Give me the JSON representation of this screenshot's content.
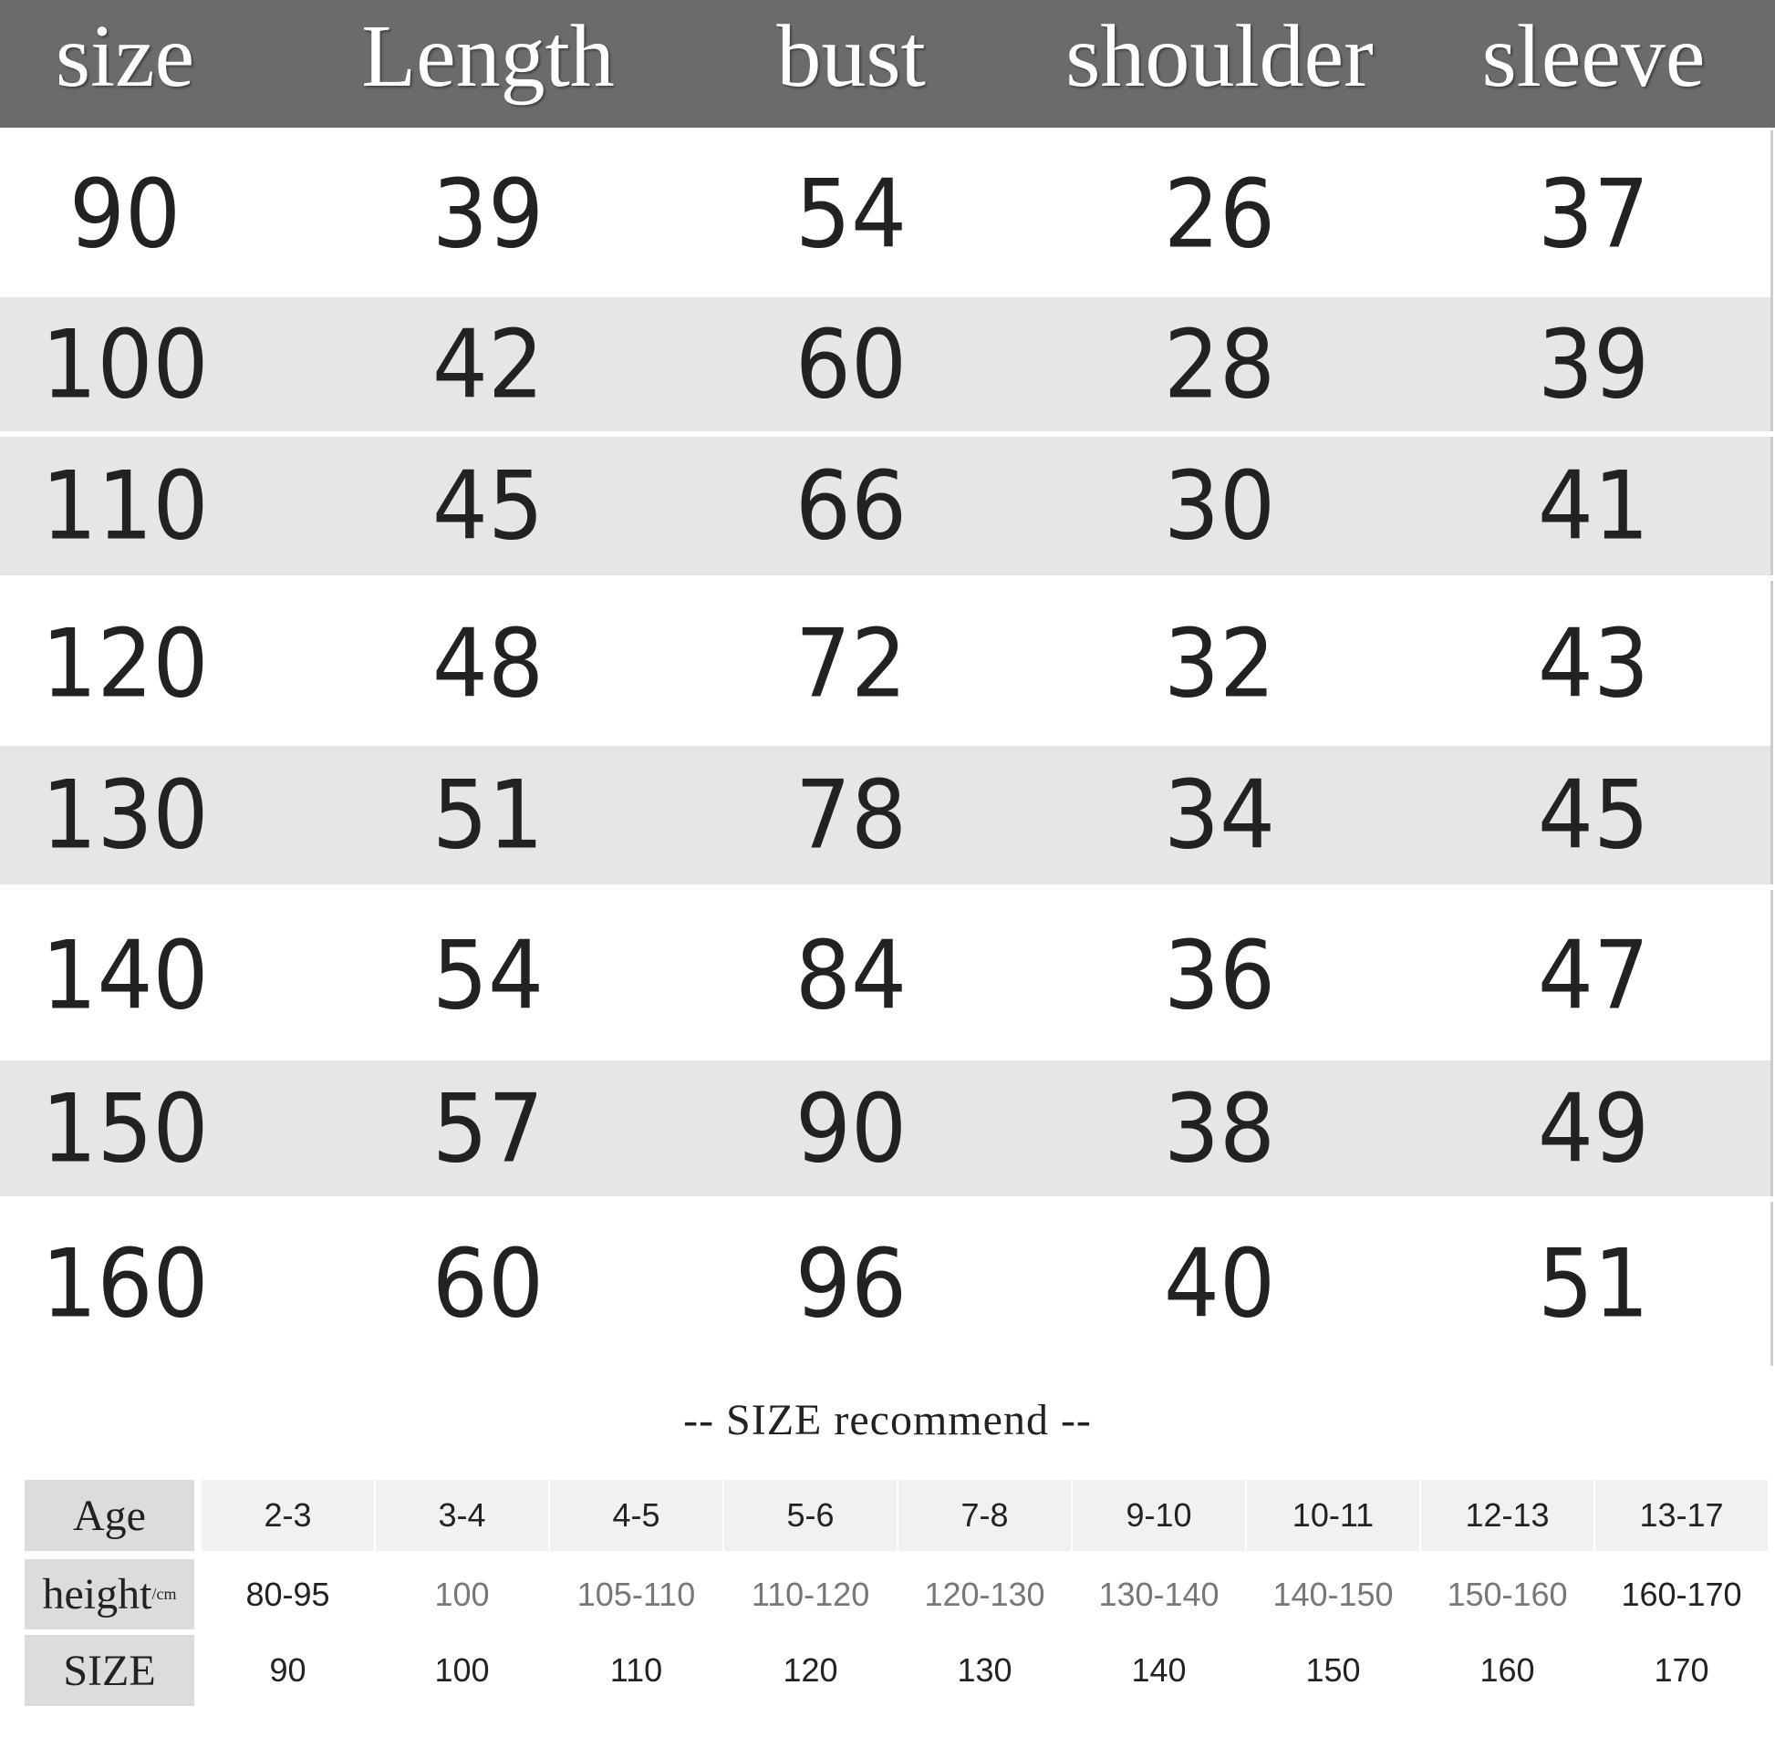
{
  "headers": [
    "size",
    "Length",
    "bust",
    "shoulder",
    "sleeve"
  ],
  "rows": [
    [
      "90",
      "39",
      "54",
      "26",
      "37"
    ],
    [
      "100",
      "42",
      "60",
      "28",
      "39"
    ],
    [
      "110",
      "45",
      "66",
      "30",
      "41"
    ],
    [
      "120",
      "48",
      "72",
      "32",
      "43"
    ],
    [
      "130",
      "51",
      "78",
      "34",
      "45"
    ],
    [
      "140",
      "54",
      "84",
      "36",
      "47"
    ],
    [
      "150",
      "57",
      "90",
      "38",
      "49"
    ],
    [
      "160",
      "60",
      "96",
      "40",
      "51"
    ]
  ],
  "recommend": {
    "title": "--  SIZE  recommend  --",
    "labels": {
      "age": "Age",
      "height": "height",
      "height_unit": "/cm",
      "size": "SIZE"
    },
    "age": [
      "2-3",
      "3-4",
      "4-5",
      "5-6",
      "7-8",
      "9-10",
      "10-11",
      "12-13",
      "13-17"
    ],
    "height": [
      "80-95",
      "100",
      "105-110",
      "110-120",
      "120-130",
      "130-140",
      "140-150",
      "150-160",
      "160-170"
    ],
    "size": [
      "90",
      "100",
      "110",
      "120",
      "130",
      "140",
      "150",
      "160",
      "170"
    ]
  }
}
